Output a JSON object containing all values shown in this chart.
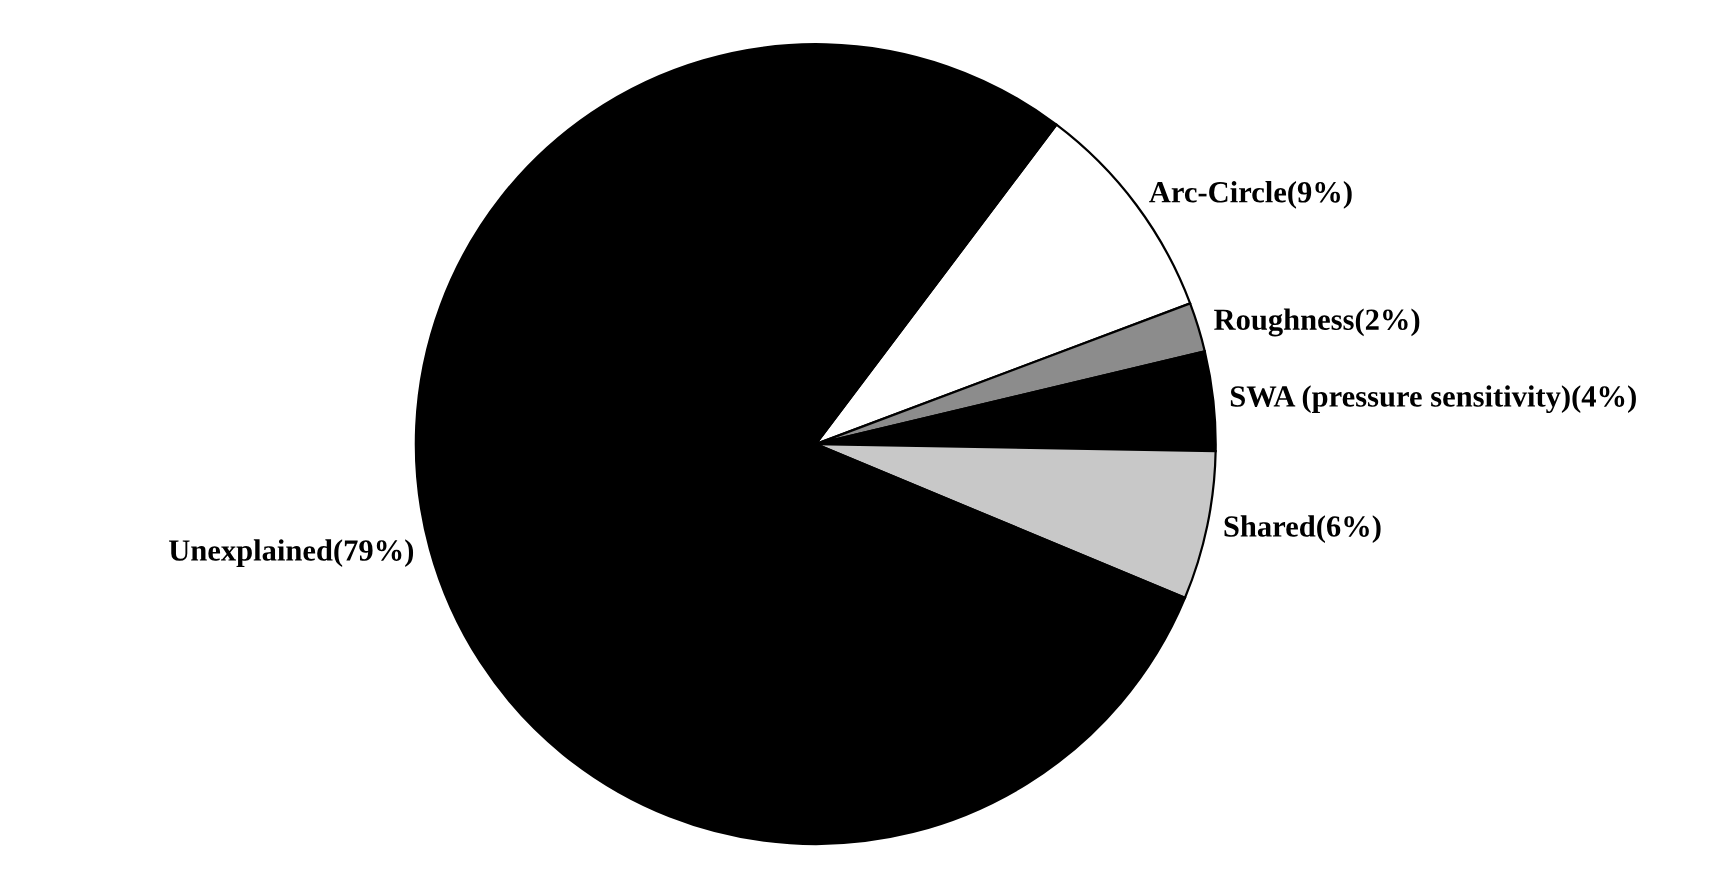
{
  "chart_data": {
    "type": "pie",
    "categories": [
      "Arc-Circle(9%)",
      "Roughness(2%)",
      "SWA (pressure sensitivity)(4%)",
      "Shared(6%)",
      "Unexplained(79%)"
    ],
    "values": [
      9,
      2,
      4,
      6,
      79
    ],
    "colors": [
      "#ffffff",
      "#8c8c8c",
      "#000000",
      "#c8c8c8",
      "#000000"
    ]
  }
}
